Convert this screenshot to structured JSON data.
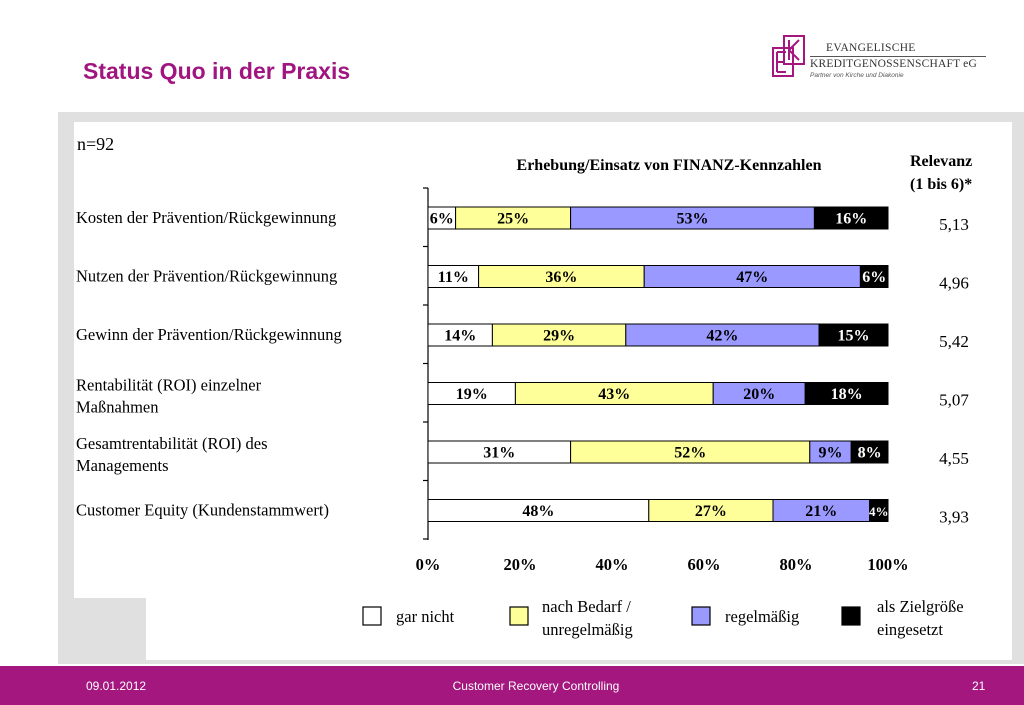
{
  "slide": {
    "title": "Status Quo in der Praxis",
    "footer_date": "09.01.2012",
    "footer_center": "Customer Recovery Controlling",
    "footer_page": "21"
  },
  "logo": {
    "line1": "EVANGELISCHE",
    "line2": "KREDITGENOSSENSCHAFT eG",
    "line3": "Partner von Kirche und Diakonie",
    "brand_color": "#a3177f"
  },
  "chart_data": {
    "type": "bar",
    "stacked": true,
    "orientation": "horizontal",
    "title": "Erhebung/Einsatz von FINANZ-Kennzahlen",
    "sample_note": "n=92",
    "relevance_header_line1": "Relevanz",
    "relevance_header_line2": "(1 bis 6)*",
    "categories": [
      [
        "Kosten der Prävention/Rückgewinnung"
      ],
      [
        "Nutzen der Prävention/Rückgewinnung"
      ],
      [
        "Gewinn der Prävention/Rückgewinnung"
      ],
      [
        "Rentabilität (ROI) einzelner",
        "Maßnahmen"
      ],
      [
        "Gesamtrentabilität (ROI) des",
        "Managements"
      ],
      [
        "Customer Equity (Kundenstammwert)"
      ]
    ],
    "relevance": [
      "5,13",
      "4,96",
      "5,42",
      "5,07",
      "4,55",
      "3,93"
    ],
    "series": [
      {
        "name": "gar nicht",
        "color": "#ffffff",
        "values": [
          6,
          11,
          14,
          19,
          31,
          48
        ]
      },
      {
        "name": "nach Bedarf / unregelmäßig",
        "color": "#ffff99",
        "values": [
          25,
          36,
          29,
          43,
          52,
          27
        ]
      },
      {
        "name": "regelmäßig",
        "color": "#9999ff",
        "values": [
          53,
          47,
          42,
          20,
          9,
          21
        ]
      },
      {
        "name": "als Zielgröße eingesetzt",
        "color": "#000000",
        "values": [
          16,
          6,
          15,
          18,
          8,
          4
        ]
      }
    ],
    "legend": [
      [
        "gar nicht"
      ],
      [
        "nach Bedarf /",
        "unregelmäßig"
      ],
      [
        "regelmäßig"
      ],
      [
        "als Zielgröße",
        "eingesetzt"
      ]
    ],
    "x_ticks": [
      "0%",
      "20%",
      "40%",
      "60%",
      "80%",
      "100%"
    ],
    "xlim": [
      0,
      100
    ],
    "legend_position": "bottom"
  }
}
